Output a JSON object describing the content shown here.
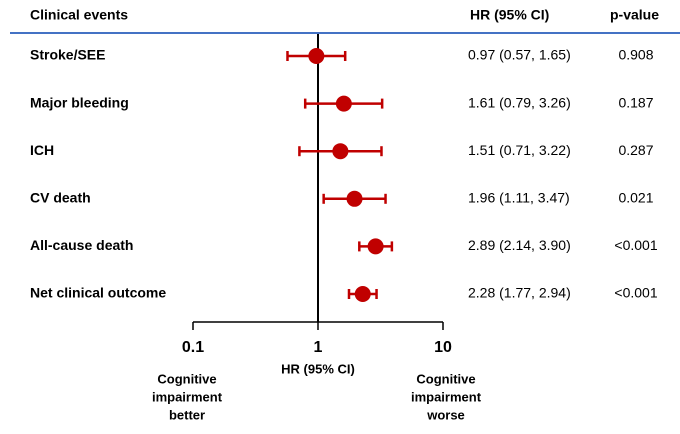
{
  "chart_data": {
    "type": "forest",
    "column_headers": [
      "Clinical events",
      "HR (95% CI)",
      "p-value"
    ],
    "categories": [
      "Stroke/SEE",
      "Major bleeding",
      "ICH",
      "CV death",
      "All-cause death",
      "Net clinical outcome"
    ],
    "hr": [
      0.97,
      1.61,
      1.51,
      1.96,
      2.89,
      2.28
    ],
    "lower": [
      0.57,
      0.79,
      0.71,
      1.11,
      2.14,
      1.77
    ],
    "upper": [
      1.65,
      3.26,
      3.22,
      3.47,
      3.9,
      2.94
    ],
    "ci_labels": [
      "0.97 (0.57, 1.65)",
      "1.61 (0.79, 3.26)",
      "1.51 (0.71, 3.22)",
      "1.96 (1.11, 3.47)",
      "2.89 (2.14, 3.90)",
      "2.28 (1.77, 2.94)"
    ],
    "p_values": [
      "0.908",
      "0.187",
      "0.287",
      "0.021",
      "<0.001",
      "<0.001"
    ],
    "color": "#c00000",
    "log_scale": true,
    "xlim": [
      0.1,
      10
    ],
    "xticks": [
      0.1,
      1,
      10
    ],
    "reference_line": 1,
    "x_label": "HR (95% CI)",
    "left_label": [
      "Cognitive",
      "impairment",
      "better"
    ],
    "right_label": [
      "Cognitive",
      "impairment",
      "worse"
    ]
  }
}
